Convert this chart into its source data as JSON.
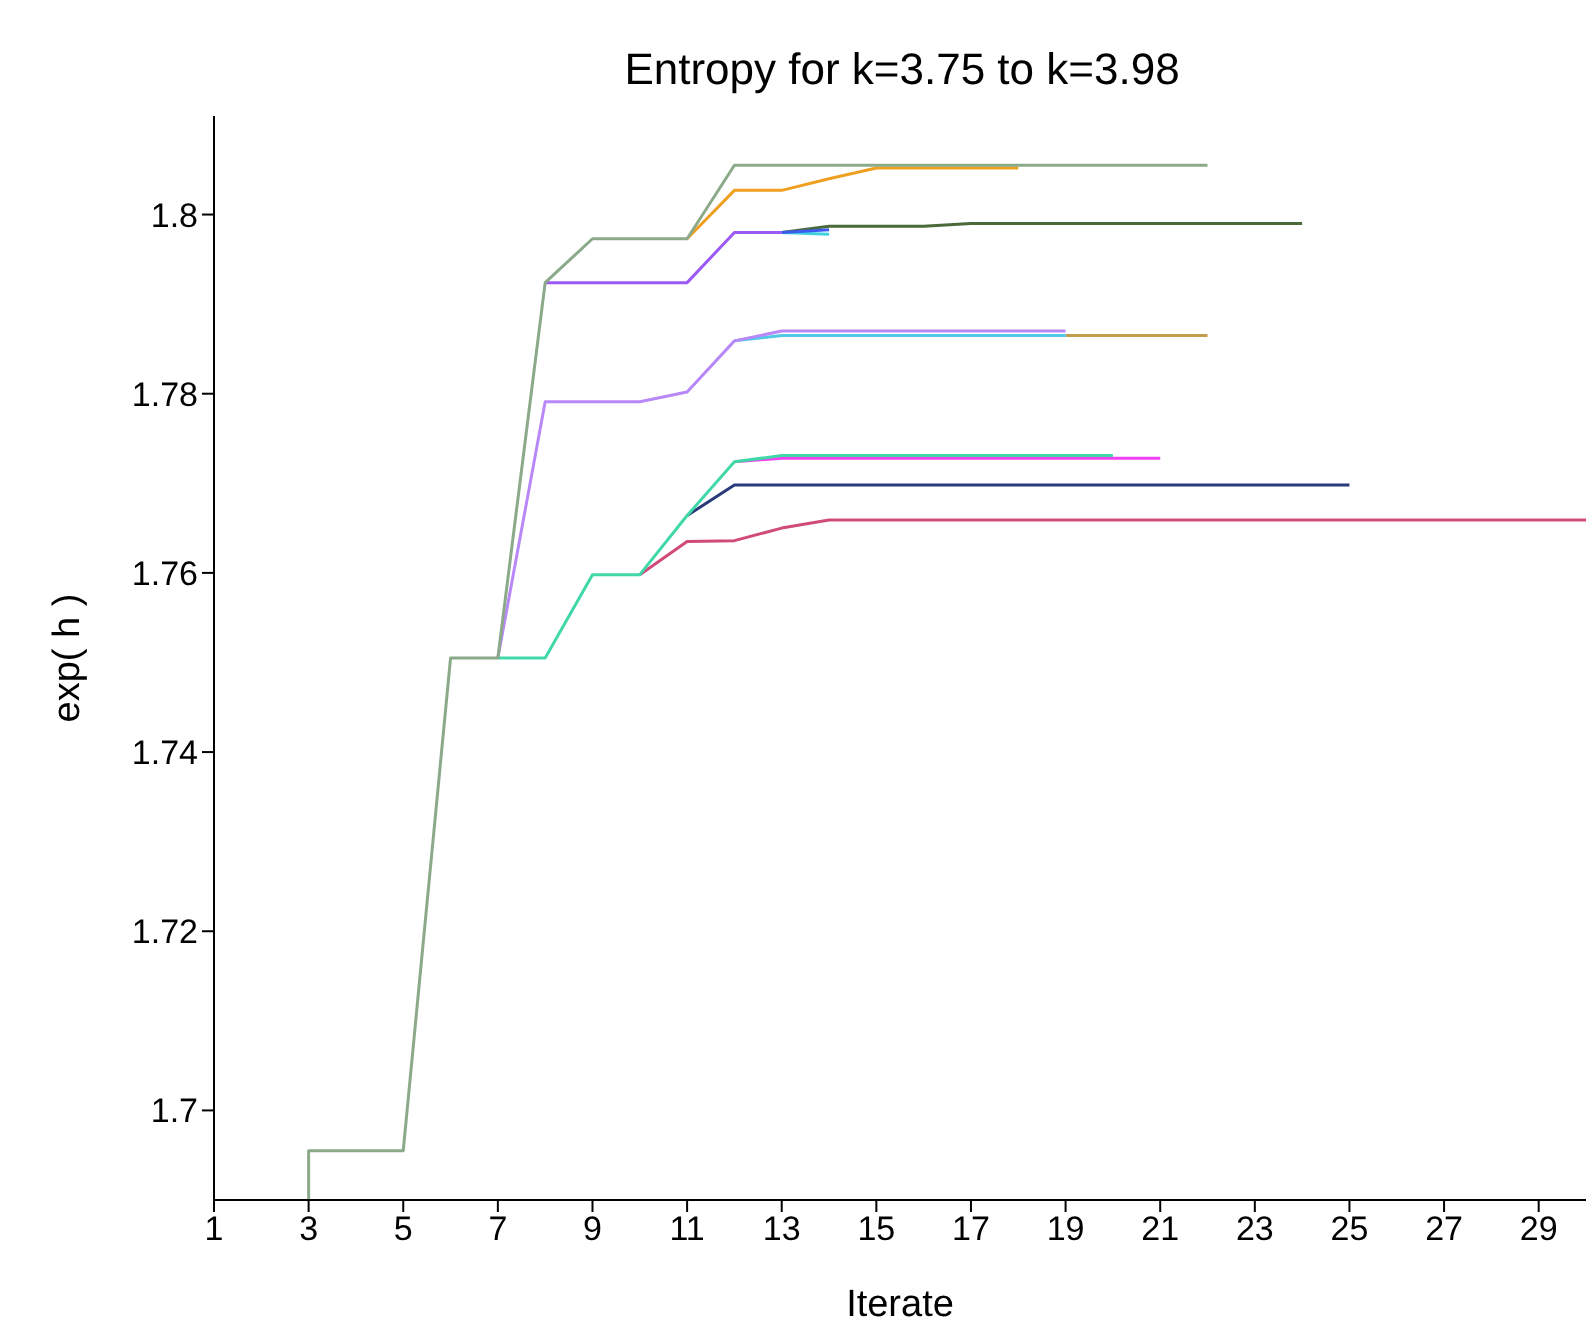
{
  "chart_data": {
    "type": "line",
    "title": "Entropy for k=3.75 to k=3.98",
    "xlabel": "Iterate",
    "ylabel": "exp( h )",
    "xlim": [
      1,
      30
    ],
    "xticks": [
      1,
      3,
      5,
      7,
      9,
      11,
      13,
      15,
      17,
      19,
      21,
      23,
      25,
      27,
      29
    ],
    "ylim": [
      1.69,
      1.811
    ],
    "yticks": [
      1.7,
      1.72,
      1.74,
      1.76,
      1.78,
      1.8
    ],
    "grid": false,
    "marker": "none",
    "line_style": "solid",
    "series": [
      {
        "color": "#d04a7a",
        "x": [
          10,
          11,
          12,
          13,
          14,
          30
        ],
        "values": [
          1.7598,
          1.7635,
          1.7636,
          1.765,
          1.7659,
          1.7659
        ]
      },
      {
        "color": "#2a3a7a",
        "x": [
          11,
          12,
          25
        ],
        "values": [
          1.7664,
          1.7698,
          1.7698
        ]
      },
      {
        "color": "#f040f0",
        "x": [
          12,
          13,
          21
        ],
        "values": [
          1.7724,
          1.7728,
          1.7728
        ]
      },
      {
        "color": "#40d8a8",
        "x": [
          7,
          8,
          9,
          10,
          11,
          12,
          13,
          20
        ],
        "values": [
          1.7505,
          1.7505,
          1.7598,
          1.7598,
          1.7664,
          1.7724,
          1.7731,
          1.7731
        ]
      },
      {
        "color": "#c0a050",
        "x": [
          19,
          22
        ],
        "values": [
          1.7865,
          1.7865
        ]
      },
      {
        "color": "#50c8e8",
        "x": [
          12,
          13,
          19
        ],
        "values": [
          1.7859,
          1.7865,
          1.7865
        ]
      },
      {
        "color": "#b888f8",
        "x": [
          7,
          8,
          10,
          11,
          12,
          13,
          19
        ],
        "values": [
          1.7505,
          1.7791,
          1.7791,
          1.7802,
          1.7859,
          1.787,
          1.787
        ]
      },
      {
        "color": "#4a6a3a",
        "x": [
          13,
          14,
          16,
          17,
          24
        ],
        "values": [
          1.798,
          1.7987,
          1.7987,
          1.799,
          1.799
        ]
      },
      {
        "color": "#40d0e0",
        "x": [
          13,
          14
        ],
        "values": [
          1.798,
          1.7978
        ]
      },
      {
        "color": "#3a5af0",
        "x": [
          13,
          14
        ],
        "values": [
          1.798,
          1.7983
        ]
      },
      {
        "color": "#9b59f5",
        "x": [
          8,
          11,
          12,
          13
        ],
        "values": [
          1.7924,
          1.7924,
          1.798,
          1.798
        ]
      },
      {
        "color": "#f0a020",
        "x": [
          11,
          12,
          13,
          14,
          15,
          18
        ],
        "values": [
          1.7973,
          1.8027,
          1.8027,
          1.804,
          1.8052,
          1.8052
        ]
      },
      {
        "color": "#8aaa8a",
        "x": [
          3,
          3,
          5,
          6,
          7,
          8,
          9,
          11,
          12,
          22
        ],
        "values": [
          1.69,
          1.6955,
          1.6955,
          1.7505,
          1.7505,
          1.7924,
          1.7973,
          1.7973,
          1.8055,
          1.8055
        ]
      }
    ]
  }
}
